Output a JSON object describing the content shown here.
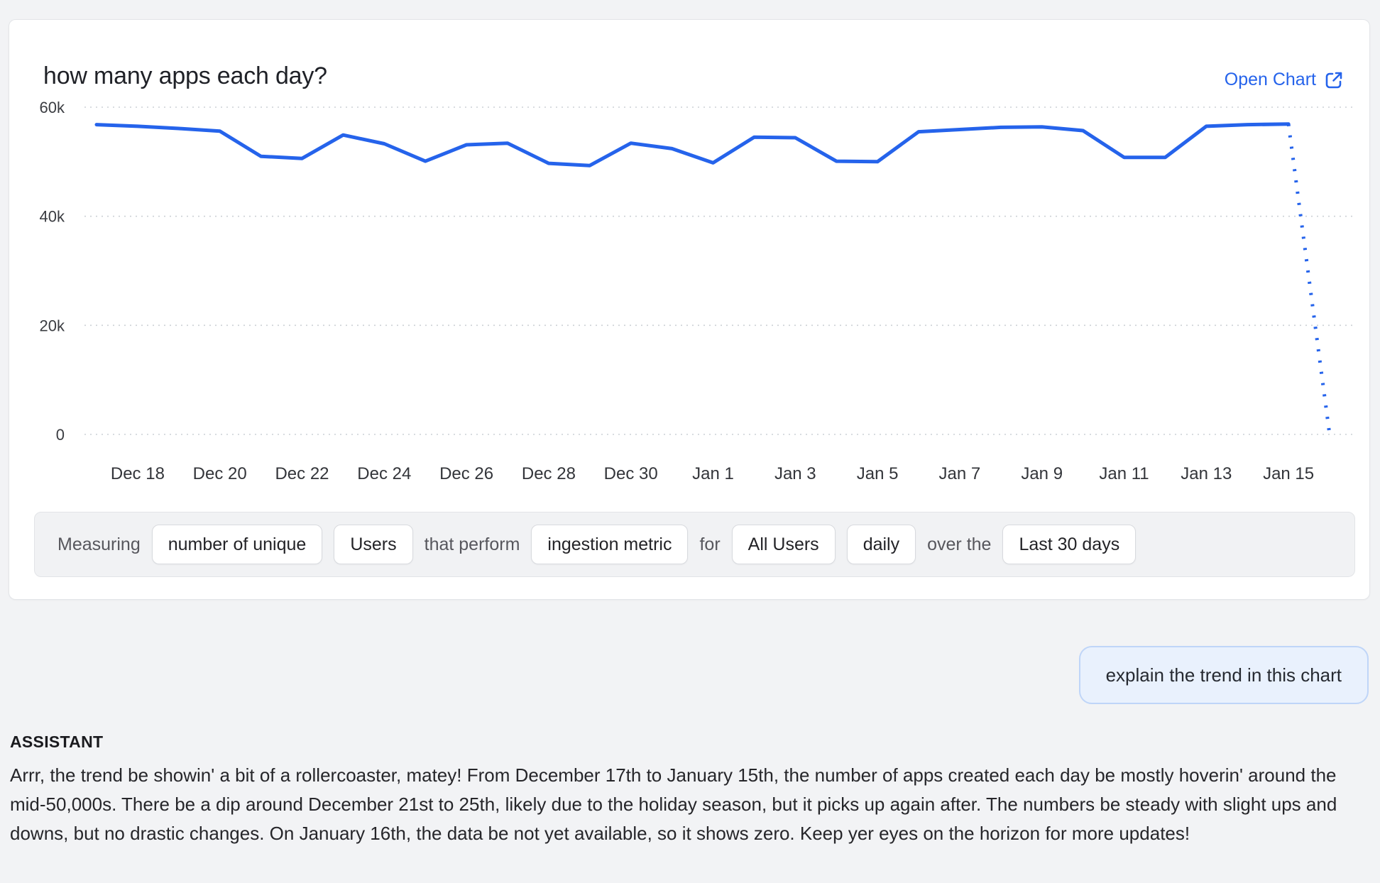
{
  "card": {
    "title": "how many apps each day?",
    "open_chart_label": "Open Chart"
  },
  "chart_data": {
    "type": "line",
    "title": "how many apps each day?",
    "x": [
      "Dec 17",
      "Dec 18",
      "Dec 19",
      "Dec 20",
      "Dec 21",
      "Dec 22",
      "Dec 23",
      "Dec 24",
      "Dec 25",
      "Dec 26",
      "Dec 27",
      "Dec 28",
      "Dec 29",
      "Dec 30",
      "Dec 31",
      "Jan 1",
      "Jan 2",
      "Jan 3",
      "Jan 4",
      "Jan 5",
      "Jan 6",
      "Jan 7",
      "Jan 8",
      "Jan 9",
      "Jan 10",
      "Jan 11",
      "Jan 12",
      "Jan 13",
      "Jan 14",
      "Jan 15",
      "Jan 16"
    ],
    "series": [
      {
        "name": "number of unique Users performing ingestion metric",
        "values": [
          56800,
          56500,
          56100,
          55600,
          51000,
          50600,
          54900,
          53300,
          50100,
          53100,
          53400,
          49700,
          49300,
          53400,
          52400,
          49800,
          54500,
          54400,
          50100,
          50000,
          55500,
          55900,
          56300,
          56400,
          55700,
          50800,
          50800,
          56500,
          56800,
          56900,
          0
        ]
      }
    ],
    "last_segment_projected_dotted": true,
    "y_ticks": [
      "60k",
      "40k",
      "20k",
      "0"
    ],
    "x_tick_labels": [
      "Dec 18",
      "Dec 20",
      "Dec 22",
      "Dec 24",
      "Dec 26",
      "Dec 28",
      "Dec 30",
      "Jan 1",
      "Jan 3",
      "Jan 5",
      "Jan 7",
      "Jan 9",
      "Jan 11",
      "Jan 13",
      "Jan 15"
    ],
    "ylim": [
      0,
      60000
    ],
    "grid": "horizontal dotted",
    "legend": "none",
    "line_color": "#2563eb"
  },
  "measuring_bar": {
    "prefix": "Measuring",
    "segments": [
      {
        "type": "pill",
        "label": "number of unique"
      },
      {
        "type": "pill",
        "label": "Users"
      },
      {
        "type": "text",
        "label": "that perform"
      },
      {
        "type": "pill",
        "label": "ingestion metric"
      },
      {
        "type": "text",
        "label": "for"
      },
      {
        "type": "pill",
        "label": "All Users"
      },
      {
        "type": "pill",
        "label": "daily"
      },
      {
        "type": "text",
        "label": "over the"
      },
      {
        "type": "pill",
        "label": "Last 30 days"
      }
    ]
  },
  "chat": {
    "user_message": "explain the trend in this chart",
    "assistant_label": "ASSISTANT",
    "assistant_message": "Arrr, the trend be showin' a bit of a rollercoaster, matey! From December 17th to January 15th, the number of apps created each day be mostly hoverin' around the mid-50,000s. There be a dip around December 21st to 25th, likely due to the holiday season, but it picks up again after. The numbers be steady with slight ups and downs, but no drastic changes. On January 16th, the data be not yet available, so it shows zero. Keep yer eyes on the horizon for more updates!"
  },
  "colors": {
    "accent_blue": "#2563eb",
    "page_background": "#f2f3f5",
    "card_background": "#ffffff",
    "bar_background": "#f1f2f4",
    "bubble_background": "#e9f1fd",
    "bubble_border": "#bfd5f8"
  }
}
